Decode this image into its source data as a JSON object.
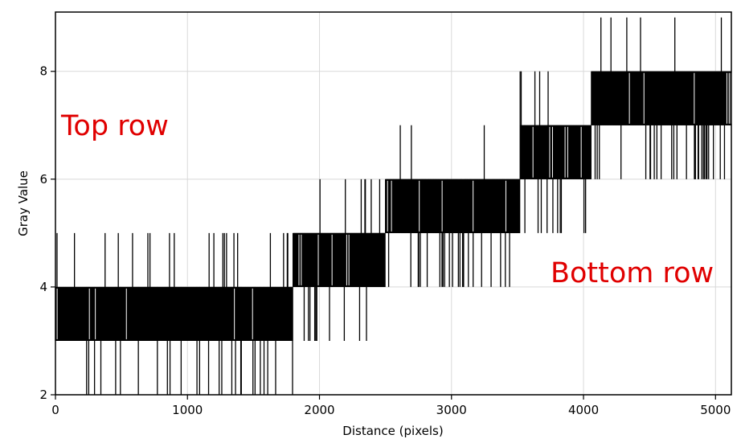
{
  "chart_data": {
    "type": "line",
    "title": "",
    "xlabel": "Distance (pixels)",
    "ylabel": "Gray Value",
    "xlim": [
      0,
      5120
    ],
    "ylim": [
      2,
      9.1
    ],
    "xticks": [
      0,
      1000,
      2000,
      3000,
      4000,
      5000
    ],
    "yticks": [
      2,
      4,
      6,
      8
    ],
    "grid": true,
    "series": [
      {
        "color": "#000000",
        "segments": [
          {
            "x_start": 0,
            "x_end": 1800,
            "low": 3,
            "high": 4
          },
          {
            "x_start": 1800,
            "x_end": 2500,
            "low": 4,
            "high": 5
          },
          {
            "x_start": 2500,
            "x_end": 3520,
            "low": 5,
            "high": 6
          },
          {
            "x_start": 3520,
            "x_end": 4060,
            "low": 6,
            "high": 7
          },
          {
            "x_start": 4060,
            "x_end": 5120,
            "low": 7,
            "high": 8
          }
        ]
      }
    ],
    "annotations": [
      "Top row",
      "Bottom row"
    ]
  },
  "colors": {
    "line": "#000000",
    "grid": "#d9d9d9",
    "annotation": "#e00000"
  }
}
